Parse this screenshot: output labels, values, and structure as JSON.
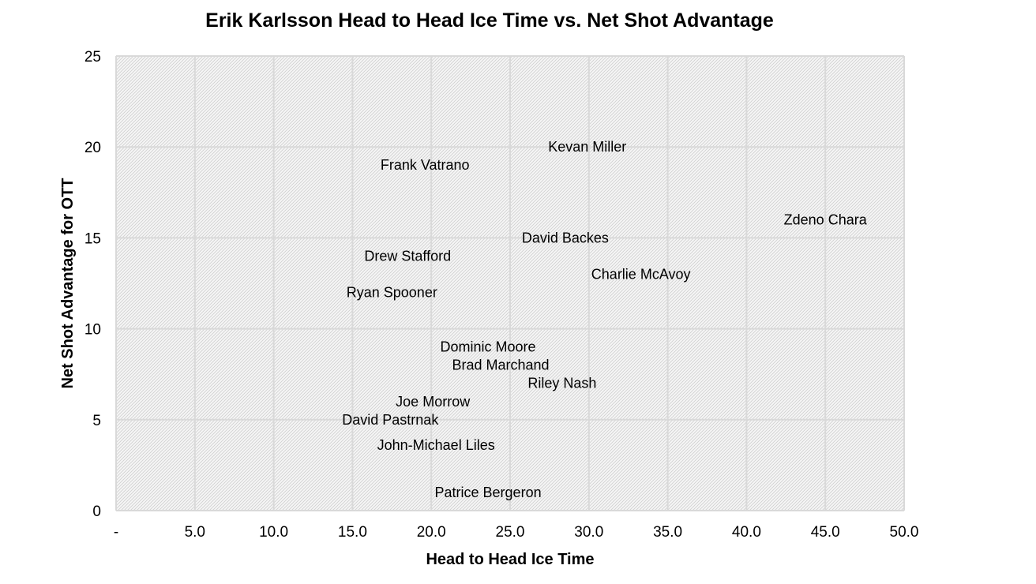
{
  "chart_data": {
    "type": "scatter",
    "title": "Erik Karlsson Head to Head Ice Time vs. Net Shot Advantage",
    "xlabel": "Head to Head Ice Time",
    "ylabel": "Net Shot Advantage for OTT",
    "xlim": [
      0,
      50
    ],
    "ylim": [
      0,
      25
    ],
    "x_ticks": [
      0,
      5,
      10,
      15,
      20,
      25,
      30,
      35,
      40,
      45,
      50
    ],
    "x_tick_labels": [
      "-",
      "5.0",
      "10.0",
      "15.0",
      "20.0",
      "25.0",
      "30.0",
      "35.0",
      "40.0",
      "45.0",
      "50.0"
    ],
    "y_ticks": [
      0,
      5,
      10,
      15,
      20,
      25
    ],
    "y_tick_labels": [
      "0",
      "5",
      "10",
      "15",
      "20",
      "25"
    ],
    "grid": true,
    "plot_background": "hatched-light-gray",
    "gridline_color": "#d9d9d9",
    "points": [
      {
        "label": "Kevan Miller",
        "x": 29.9,
        "y": 20
      },
      {
        "label": "Frank Vatrano",
        "x": 19.6,
        "y": 19
      },
      {
        "label": "Zdeno Chara",
        "x": 45,
        "y": 16
      },
      {
        "label": "David Backes",
        "x": 28.5,
        "y": 15
      },
      {
        "label": "Drew Stafford",
        "x": 18.5,
        "y": 14
      },
      {
        "label": "Charlie McAvoy",
        "x": 33.3,
        "y": 13
      },
      {
        "label": "Ryan Spooner",
        "x": 17.5,
        "y": 12
      },
      {
        "label": "Dominic Moore",
        "x": 23.6,
        "y": 9
      },
      {
        "label": "Brad Marchand",
        "x": 24.4,
        "y": 8
      },
      {
        "label": "Riley Nash",
        "x": 28.3,
        "y": 7
      },
      {
        "label": "Joe Morrow",
        "x": 20.1,
        "y": 6
      },
      {
        "label": "David Pastrnak",
        "x": 17.4,
        "y": 5
      },
      {
        "label": "John-Michael Liles",
        "x": 20.3,
        "y": 3.6
      },
      {
        "label": "Patrice Bergeron",
        "x": 23.6,
        "y": 1
      }
    ]
  }
}
